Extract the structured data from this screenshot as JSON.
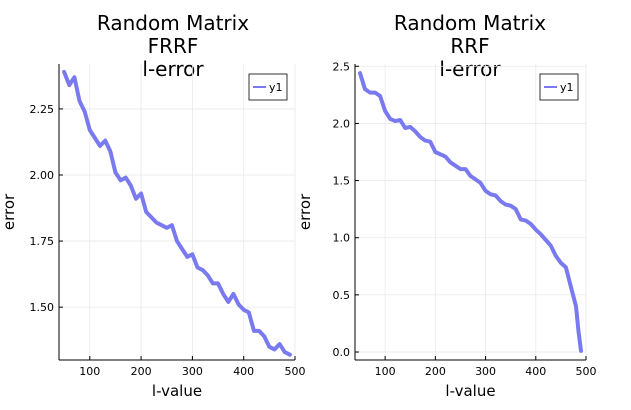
{
  "chart_data": [
    {
      "type": "line",
      "title_lines": [
        "Random Matrix",
        "FRRF",
        "l-error"
      ],
      "xlabel": "l-value",
      "ylabel": "error",
      "xlim": [
        40,
        500
      ],
      "ylim": [
        1.3,
        2.42
      ],
      "xticks": [
        100,
        200,
        300,
        400,
        500
      ],
      "yticks": [
        1.5,
        1.75,
        2.0,
        2.25
      ],
      "ytick_labels": [
        "1.50",
        "1.75",
        "2.00",
        "2.25"
      ],
      "grid": true,
      "legend_position": "top-right",
      "series": [
        {
          "name": "y1",
          "color": "#7a7af0",
          "x": [
            50,
            60,
            70,
            80,
            90,
            100,
            110,
            120,
            130,
            140,
            150,
            160,
            170,
            180,
            190,
            200,
            210,
            220,
            230,
            240,
            250,
            260,
            270,
            280,
            290,
            300,
            310,
            320,
            330,
            340,
            350,
            360,
            370,
            380,
            390,
            400,
            410,
            420,
            430,
            440,
            450,
            460,
            470,
            480,
            490
          ],
          "y": [
            2.39,
            2.34,
            2.37,
            2.28,
            2.24,
            2.17,
            2.14,
            2.11,
            2.13,
            2.09,
            2.01,
            1.98,
            1.99,
            1.96,
            1.91,
            1.93,
            1.86,
            1.84,
            1.82,
            1.81,
            1.8,
            1.81,
            1.75,
            1.72,
            1.69,
            1.7,
            1.65,
            1.64,
            1.62,
            1.59,
            1.59,
            1.55,
            1.52,
            1.55,
            1.51,
            1.49,
            1.48,
            1.41,
            1.41,
            1.39,
            1.35,
            1.34,
            1.36,
            1.33,
            1.32
          ]
        }
      ]
    },
    {
      "type": "line",
      "title_lines": [
        "Random Matrix",
        "RRF",
        "l-error"
      ],
      "xlabel": "l-value",
      "ylabel": "error",
      "xlim": [
        40,
        500
      ],
      "ylim": [
        -0.07,
        2.52
      ],
      "xticks": [
        100,
        200,
        300,
        400,
        500
      ],
      "yticks": [
        0.0,
        0.5,
        1.0,
        1.5,
        2.0,
        2.5
      ],
      "ytick_labels": [
        "0.0",
        "0.5",
        "1.0",
        "1.5",
        "2.0",
        "2.5"
      ],
      "grid": true,
      "legend_position": "top-right",
      "series": [
        {
          "name": "y1",
          "color": "#7a7af0",
          "x": [
            50,
            60,
            70,
            80,
            90,
            100,
            110,
            120,
            130,
            140,
            150,
            160,
            170,
            180,
            190,
            200,
            210,
            220,
            230,
            240,
            250,
            260,
            270,
            280,
            290,
            300,
            310,
            320,
            330,
            340,
            350,
            360,
            370,
            380,
            390,
            400,
            410,
            420,
            430,
            440,
            450,
            460,
            470,
            480,
            485,
            490
          ],
          "y": [
            2.44,
            2.3,
            2.27,
            2.27,
            2.24,
            2.11,
            2.04,
            2.02,
            2.03,
            1.96,
            1.97,
            1.93,
            1.88,
            1.85,
            1.84,
            1.75,
            1.73,
            1.71,
            1.66,
            1.63,
            1.6,
            1.6,
            1.54,
            1.51,
            1.48,
            1.41,
            1.38,
            1.37,
            1.32,
            1.29,
            1.28,
            1.25,
            1.16,
            1.15,
            1.12,
            1.07,
            1.03,
            0.98,
            0.93,
            0.84,
            0.78,
            0.74,
            0.57,
            0.4,
            0.18,
            0.01
          ]
        }
      ]
    }
  ]
}
